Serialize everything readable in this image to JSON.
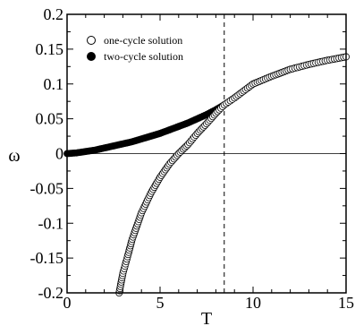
{
  "chart_data": {
    "type": "scatter",
    "xlabel": "T",
    "ylabel": "ω",
    "xlim": [
      0,
      15
    ],
    "ylim": [
      -0.2,
      0.2
    ],
    "x_ticks": [
      "0",
      "5",
      "10",
      "15"
    ],
    "y_ticks": [
      "-0.2",
      "-0.15",
      "-0.1",
      "-0.05",
      "0",
      "0.05",
      "0.1",
      "0.15",
      "0.2"
    ],
    "reference_lines": [
      {
        "orientation": "horizontal",
        "value": 0,
        "style": "solid"
      },
      {
        "orientation": "vertical",
        "value": 8.45,
        "style": "dashed"
      }
    ],
    "legend_position": "top-left",
    "series": [
      {
        "name": "one-cycle solution",
        "marker": "open-circle",
        "x": [
          2.8,
          3.0,
          3.25,
          3.5,
          4.0,
          4.5,
          5.0,
          5.5,
          6.0,
          6.5,
          7.0,
          7.5,
          8.0,
          8.45,
          9.0,
          10.0,
          11.0,
          12.0,
          13.0,
          14.0,
          15.0
        ],
        "y": [
          -0.2,
          -0.172,
          -0.148,
          -0.123,
          -0.085,
          -0.057,
          -0.034,
          -0.015,
          0.0,
          0.013,
          0.029,
          0.043,
          0.058,
          0.07,
          0.08,
          0.1,
          0.111,
          0.121,
          0.128,
          0.134,
          0.139
        ]
      },
      {
        "name": "two-cycle solution",
        "marker": "filled-circle",
        "x": [
          0.0,
          0.5,
          1.0,
          1.5,
          2.0,
          2.5,
          3.0,
          3.5,
          4.0,
          4.5,
          5.0,
          5.5,
          6.0,
          6.5,
          7.0,
          7.5,
          8.0,
          8.45
        ],
        "y": [
          0.0,
          0.001,
          0.003,
          0.005,
          0.008,
          0.011,
          0.014,
          0.017,
          0.021,
          0.025,
          0.029,
          0.034,
          0.039,
          0.044,
          0.05,
          0.056,
          0.063,
          0.07
        ]
      }
    ]
  }
}
